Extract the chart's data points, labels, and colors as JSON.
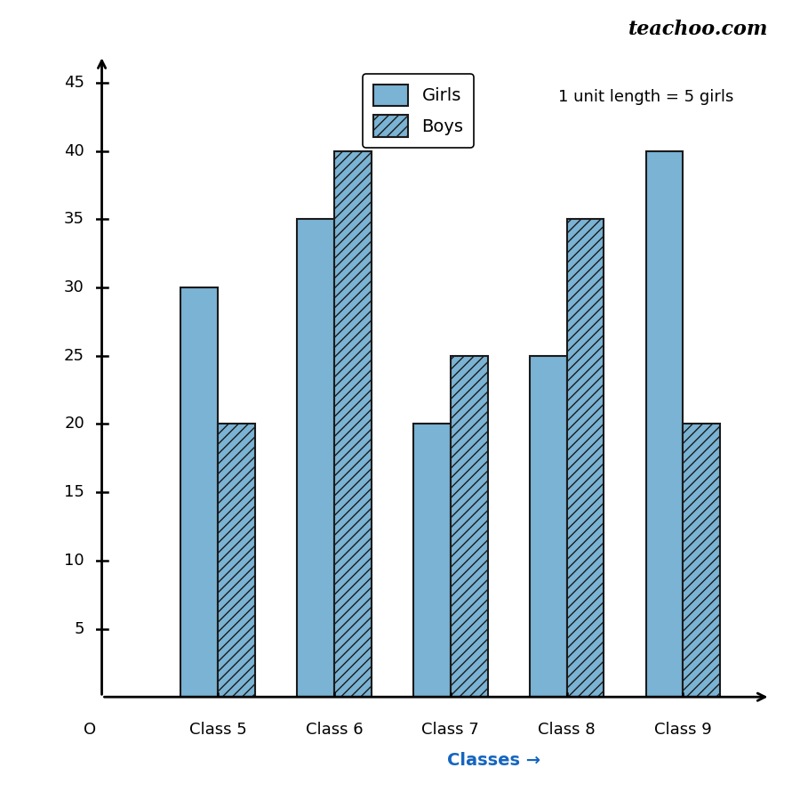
{
  "categories": [
    "Class 5",
    "Class 6",
    "Class 7",
    "Class 8",
    "Class 9"
  ],
  "girls": [
    30,
    35,
    20,
    25,
    40
  ],
  "boys": [
    20,
    40,
    25,
    35,
    20
  ],
  "girls_color": "#7ab3d4",
  "boys_color": "#7ab3d4",
  "bar_edge_color": "#1a1a1a",
  "title_text": "teachoo.com",
  "xlabel": "Classes →",
  "xlabel_color": "#1565c0",
  "ylabel_color": "#1565c0",
  "ylim": [
    0,
    47
  ],
  "yticks": [
    5,
    10,
    15,
    20,
    25,
    30,
    35,
    40,
    45
  ],
  "origin_label": "O",
  "legend_girls": "Girls",
  "legend_boys": "Boys",
  "annotation": "1 unit length = 5 girls",
  "bar_width": 0.32,
  "figsize": [
    9.0,
    8.9
  ],
  "dpi": 100
}
